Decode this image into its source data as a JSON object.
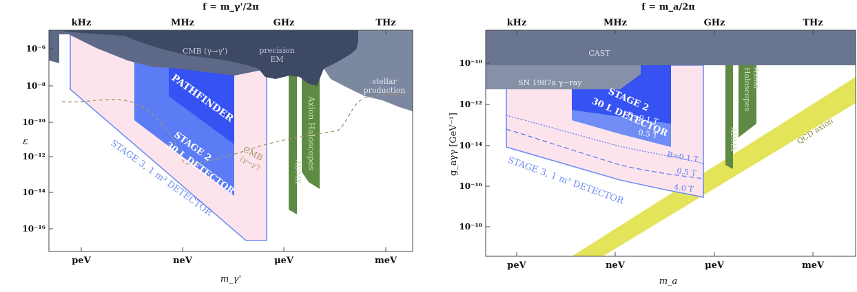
{
  "colors": {
    "stage3_fill": "#fde4ec",
    "stage3_edge": "#6f8ff0",
    "stage2_fill": "#5b7cf4",
    "pathfinder_fill": "#3652f2",
    "stage2_light": "#6f8df5",
    "dark_region": "#3e4966",
    "mid_region": "#5d6986",
    "light_region": "#7c88a0",
    "haloscope_green": "#5e8a43",
    "qcd_yellow": "#e4e45a",
    "cmb_dashed": "#a8916a",
    "frame": "#444444"
  },
  "chart_data": [
    {
      "type": "area",
      "title": "f = m_γ'/2π",
      "xlabel": "m_γ'",
      "ylabel": "ε",
      "x_scale": "log",
      "y_scale": "log",
      "xlim": [
        "1e-13 eV",
        "1e-2 eV"
      ],
      "ylim": [
        1e-17,
        1e-05
      ],
      "bottom_ticks": [
        "peV",
        "neV",
        "μeV",
        "meV"
      ],
      "top_ticks": [
        "kHz",
        "MHz",
        "GHz",
        "THz"
      ],
      "y_ticks": [
        "10⁻⁶",
        "10⁻⁸",
        "10⁻¹⁰",
        "10⁻¹²",
        "10⁻¹⁴",
        "10⁻¹⁶"
      ],
      "regions": [
        {
          "name": "STAGE 3, 1 m³ DETECTOR",
          "label": "STAGE 3, 1 m³ DETECTOR"
        },
        {
          "name": "STAGE 2 30 L DETECTOR",
          "label_lines": [
            "STAGE 2",
            "30 L DETECTOR"
          ]
        },
        {
          "name": "PATHFINDER",
          "label": "PATHFINDER"
        },
        {
          "name": "CMB (γ→γ')",
          "label": "CMB (γ→γ')"
        },
        {
          "name": "precision EM",
          "label_lines": [
            "precision",
            "EM"
          ]
        },
        {
          "name": "stellar production",
          "label_lines": [
            "stellar",
            "production"
          ]
        },
        {
          "name": "Axion Haloscopes",
          "label": "Axion Haloscopes"
        },
        {
          "name": "ADMX",
          "label": "ADMX"
        },
        {
          "name": "CMB dashed",
          "label_lines": [
            "CMB",
            "(γ→γ')"
          ]
        }
      ]
    },
    {
      "type": "area",
      "title": "f = m_a/2π",
      "xlabel": "m_a",
      "ylabel": "g_aγγ [GeV⁻¹]",
      "x_scale": "log",
      "y_scale": "log",
      "xlim": [
        "1e-13 eV",
        "1e-2 eV"
      ],
      "ylim": [
        1e-20,
        1e-09
      ],
      "bottom_ticks": [
        "peV",
        "neV",
        "μeV",
        "meV"
      ],
      "top_ticks": [
        "kHz",
        "MHz",
        "GHz",
        "THz"
      ],
      "y_ticks": [
        "10⁻¹⁰",
        "10⁻¹²",
        "10⁻¹⁴",
        "10⁻¹⁶",
        "10⁻¹⁸"
      ],
      "regions": [
        {
          "name": "CAST",
          "label": "CAST"
        },
        {
          "name": "SN 1987a γ-ray",
          "label": "SN 1987a γ−ray"
        },
        {
          "name": "STAGE 2 30 L DETECTOR",
          "label_lines": [
            "STAGE 2",
            "30 L DETECTOR"
          ]
        },
        {
          "name": "STAGE 3, 1 m³ DETECTOR",
          "label": "STAGE 3, 1 m³ DETECTOR"
        },
        {
          "name": "ADMX",
          "label": "ADMX"
        },
        {
          "name": "Axion Haloscopes",
          "label_lines": [
            "Axion",
            "Haloscopes"
          ]
        },
        {
          "name": "QCD axion",
          "label": "QCD axion"
        }
      ],
      "field_labels_stage2": [
        "B=0.1 T",
        "0.5 T"
      ],
      "field_labels_stage3": [
        "B=0.1 T",
        "0.5 T",
        "4.0 T"
      ]
    }
  ]
}
